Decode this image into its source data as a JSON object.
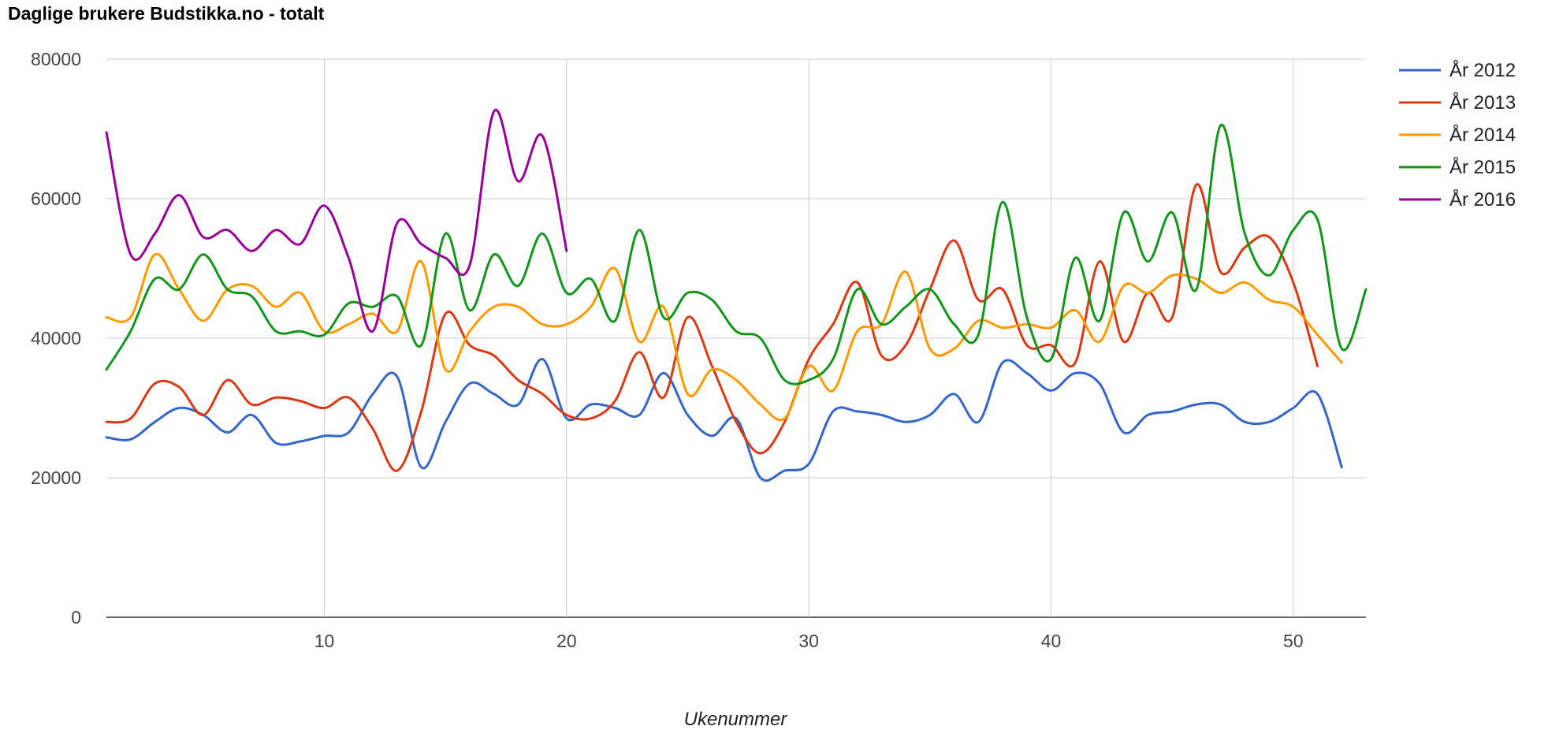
{
  "chart_data": {
    "type": "line",
    "title": "Daglige brukere Budstikka.no - totalt",
    "xlabel": "Ukenummer",
    "ylabel": "",
    "xlim": [
      1,
      53
    ],
    "ylim": [
      0,
      80000
    ],
    "xticks": [
      10,
      20,
      30,
      40,
      50
    ],
    "yticks": [
      0,
      20000,
      40000,
      60000,
      80000
    ],
    "grid": true,
    "legend_position": "right",
    "series": [
      {
        "name": "År 2012",
        "color": "#3366cc",
        "x": [
          1,
          2,
          3,
          4,
          5,
          6,
          7,
          8,
          9,
          10,
          11,
          12,
          13,
          14,
          15,
          16,
          17,
          18,
          19,
          20,
          21,
          22,
          23,
          24,
          25,
          26,
          27,
          28,
          29,
          30,
          31,
          32,
          33,
          34,
          35,
          36,
          37,
          38,
          39,
          40,
          41,
          42,
          43,
          44,
          45,
          46,
          47,
          48,
          49,
          50,
          51,
          52
        ],
        "y": [
          25800,
          25500,
          28000,
          30000,
          29000,
          26500,
          29000,
          25000,
          25200,
          26000,
          26500,
          32000,
          34500,
          21500,
          28000,
          33500,
          32000,
          30500,
          37000,
          28500,
          30500,
          30000,
          29000,
          35000,
          29000,
          26000,
          28500,
          20000,
          21000,
          22000,
          29500,
          29500,
          29000,
          28000,
          29000,
          32000,
          28000,
          36500,
          35000,
          32500,
          35000,
          33500,
          26500,
          29000,
          29500,
          30500,
          30500,
          28000,
          28000,
          30000,
          32000,
          21500
        ]
      },
      {
        "name": "År 2013",
        "color": "#dc3912",
        "x": [
          1,
          2,
          3,
          4,
          5,
          6,
          7,
          8,
          9,
          10,
          11,
          12,
          13,
          14,
          15,
          16,
          17,
          18,
          19,
          20,
          21,
          22,
          23,
          24,
          25,
          26,
          27,
          28,
          29,
          30,
          31,
          32,
          33,
          34,
          35,
          36,
          37,
          38,
          39,
          40,
          41,
          42,
          43,
          44,
          45,
          46,
          47,
          48,
          49,
          50,
          51
        ],
        "y": [
          28000,
          28500,
          33500,
          33000,
          29000,
          34000,
          30500,
          31500,
          31000,
          30000,
          31500,
          27000,
          21000,
          29500,
          43500,
          39000,
          37500,
          34000,
          32000,
          29000,
          28500,
          31000,
          38000,
          31500,
          43000,
          36000,
          28000,
          23500,
          28000,
          37000,
          42000,
          48000,
          37500,
          39000,
          47000,
          54000,
          45500,
          47000,
          39000,
          39000,
          36500,
          51000,
          39500,
          46500,
          43000,
          62000,
          49500,
          53000,
          54500,
          48000,
          36000
        ]
      },
      {
        "name": "År 2014",
        "color": "#ff9900",
        "x": [
          1,
          2,
          3,
          4,
          5,
          6,
          7,
          8,
          9,
          10,
          11,
          12,
          13,
          14,
          15,
          16,
          17,
          18,
          19,
          20,
          21,
          22,
          23,
          24,
          25,
          26,
          27,
          28,
          29,
          30,
          31,
          32,
          33,
          34,
          35,
          36,
          37,
          38,
          39,
          40,
          41,
          42,
          43,
          44,
          45,
          46,
          47,
          48,
          49,
          50,
          51,
          52
        ],
        "y": [
          43000,
          43000,
          52000,
          47000,
          42500,
          47000,
          47500,
          44500,
          46500,
          41000,
          42000,
          43500,
          41000,
          51000,
          35500,
          41000,
          44500,
          44500,
          42000,
          42000,
          44500,
          50000,
          39500,
          44500,
          32000,
          35500,
          34000,
          30500,
          28500,
          36000,
          32500,
          41000,
          42000,
          49500,
          38500,
          38500,
          42500,
          41500,
          42000,
          41500,
          44000,
          39500,
          47500,
          46500,
          49000,
          48500,
          46500,
          48000,
          45500,
          44500,
          40500,
          36500
        ]
      },
      {
        "name": "År 2015",
        "color": "#109618",
        "x": [
          1,
          2,
          3,
          4,
          5,
          6,
          7,
          8,
          9,
          10,
          11,
          12,
          13,
          14,
          15,
          16,
          17,
          18,
          19,
          20,
          21,
          22,
          23,
          24,
          25,
          26,
          27,
          28,
          29,
          30,
          31,
          32,
          33,
          34,
          35,
          36,
          37,
          38,
          39,
          40,
          41,
          42,
          43,
          44,
          45,
          46,
          47,
          48,
          49,
          50,
          51,
          52,
          53
        ],
        "y": [
          35500,
          41000,
          48500,
          47000,
          52000,
          47000,
          46000,
          41000,
          41000,
          40500,
          45000,
          44500,
          46000,
          39000,
          55000,
          44000,
          52000,
          47500,
          55000,
          46500,
          48500,
          42500,
          55500,
          43000,
          46500,
          45500,
          41000,
          40000,
          34000,
          34000,
          37000,
          47000,
          42000,
          44500,
          47000,
          42000,
          40500,
          59500,
          43000,
          37000,
          51500,
          42500,
          58000,
          51000,
          58000,
          47000,
          70500,
          55000,
          49000,
          55500,
          57000,
          38500,
          47000
        ]
      },
      {
        "name": "År 2016",
        "color": "#990099",
        "x": [
          1,
          2,
          3,
          4,
          5,
          6,
          7,
          8,
          9,
          10,
          11,
          12,
          13,
          14,
          15,
          16,
          17,
          18,
          19,
          20
        ],
        "y": [
          69500,
          52000,
          55000,
          60500,
          54500,
          55500,
          52500,
          55500,
          53500,
          59000,
          51500,
          41000,
          56500,
          53500,
          51500,
          50500,
          72500,
          62500,
          69000,
          52500
        ]
      }
    ]
  }
}
